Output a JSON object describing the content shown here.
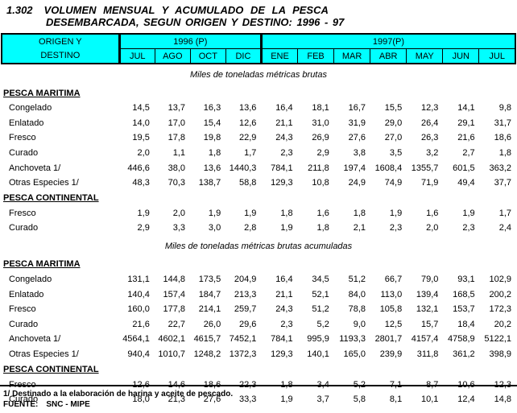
{
  "colors": {
    "header_bg": "#00FFFF",
    "border": "#000000",
    "text": "#000000"
  },
  "title": {
    "number": "1.302",
    "line1": "VOLUMEN MENSUAL Y ACUMULADO DE LA PESCA",
    "line2": "DESEMBARCADA, SEGUN ORIGEN Y DESTINO: 1996 - 97"
  },
  "header": {
    "origin_line1": "ORIGEN Y",
    "origin_line2": "DESTINO",
    "group_1996": "1996 (P)",
    "group_1997": "1997(P)",
    "months_1996": [
      "JUL",
      "AGO",
      "OCT",
      "DIC"
    ],
    "months_1997": [
      "ENE",
      "FEB",
      "MAR",
      "ABR",
      "MAY",
      "JUN",
      "JUL"
    ]
  },
  "sections": [
    {
      "caption": "Miles de toneladas métricas brutas",
      "groups": [
        {
          "heading": "PESCA MARITIMA",
          "rows": [
            {
              "label": "Congelado",
              "values": [
                "14,5",
                "13,7",
                "16,3",
                "13,6",
                "16,4",
                "18,1",
                "16,7",
                "15,5",
                "12,3",
                "14,1",
                "9,8"
              ]
            },
            {
              "label": "Enlatado",
              "values": [
                "14,0",
                "17,0",
                "15,4",
                "12,6",
                "21,1",
                "31,0",
                "31,9",
                "29,0",
                "26,4",
                "29,1",
                "31,7"
              ]
            },
            {
              "label": "Fresco",
              "values": [
                "19,5",
                "17,8",
                "19,8",
                "22,9",
                "24,3",
                "26,9",
                "27,6",
                "27,0",
                "26,3",
                "21,6",
                "18,6"
              ]
            },
            {
              "label": "Curado",
              "values": [
                "2,0",
                "1,1",
                "1,8",
                "1,7",
                "2,3",
                "2,9",
                "3,8",
                "3,5",
                "3,2",
                "2,7",
                "1,8"
              ]
            },
            {
              "label": "Anchoveta 1/",
              "values": [
                "446,6",
                "38,0",
                "13,6",
                "1440,3",
                "784,1",
                "211,8",
                "197,4",
                "1608,4",
                "1355,7",
                "601,5",
                "363,2"
              ]
            },
            {
              "label": "Otras Especies 1/",
              "values": [
                "48,3",
                "70,3",
                "138,7",
                "58,8",
                "129,3",
                "10,8",
                "24,9",
                "74,9",
                "71,9",
                "49,4",
                "37,7"
              ]
            }
          ]
        },
        {
          "heading": "PESCA CONTINENTAL",
          "rows": [
            {
              "label": "Fresco",
              "values": [
                "1,9",
                "2,0",
                "1,9",
                "1,9",
                "1,8",
                "1,6",
                "1,8",
                "1,9",
                "1,6",
                "1,9",
                "1,7"
              ]
            },
            {
              "label": "Curado",
              "values": [
                "2,9",
                "3,3",
                "3,0",
                "2,8",
                "1,9",
                "1,8",
                "2,1",
                "2,3",
                "2,0",
                "2,3",
                "2,4"
              ]
            }
          ]
        }
      ]
    },
    {
      "caption": "Miles de toneladas métricas brutas acumuladas",
      "groups": [
        {
          "heading": "PESCA MARITIMA",
          "rows": [
            {
              "label": "Congelado",
              "values": [
                "131,1",
                "144,8",
                "173,5",
                "204,9",
                "16,4",
                "34,5",
                "51,2",
                "66,7",
                "79,0",
                "93,1",
                "102,9"
              ]
            },
            {
              "label": "Enlatado",
              "values": [
                "140,4",
                "157,4",
                "184,7",
                "213,3",
                "21,1",
                "52,1",
                "84,0",
                "113,0",
                "139,4",
                "168,5",
                "200,2"
              ]
            },
            {
              "label": "Fresco",
              "values": [
                "160,0",
                "177,8",
                "214,1",
                "259,7",
                "24,3",
                "51,2",
                "78,8",
                "105,8",
                "132,1",
                "153,7",
                "172,3"
              ]
            },
            {
              "label": "Curado",
              "values": [
                "21,6",
                "22,7",
                "26,0",
                "29,6",
                "2,3",
                "5,2",
                "9,0",
                "12,5",
                "15,7",
                "18,4",
                "20,2"
              ]
            },
            {
              "label": "Anchoveta 1/",
              "values": [
                "4564,1",
                "4602,1",
                "4615,7",
                "7452,1",
                "784,1",
                "995,9",
                "1193,3",
                "2801,7",
                "4157,4",
                "4758,9",
                "5122,1"
              ]
            },
            {
              "label": "Otras Especies 1/",
              "values": [
                "940,4",
                "1010,7",
                "1248,2",
                "1372,3",
                "129,3",
                "140,1",
                "165,0",
                "239,9",
                "311,8",
                "361,2",
                "398,9"
              ]
            }
          ]
        },
        {
          "heading": "PESCA CONTINENTAL",
          "rows": [
            {
              "label": "Fresco",
              "values": [
                "12,6",
                "14,6",
                "18,6",
                "22,3",
                "1,8",
                "3,4",
                "5,2",
                "7,1",
                "8,7",
                "10,6",
                "12,3"
              ]
            },
            {
              "label": "Curado",
              "values": [
                "18,0",
                "21,3",
                "27,6",
                "33,3",
                "1,9",
                "3,7",
                "5,8",
                "8,1",
                "10,1",
                "12,4",
                "14,8"
              ]
            }
          ]
        }
      ]
    }
  ],
  "footer": {
    "footnote": "1/ Destinado a la elaboración de harina y aceite de pescado.",
    "source_label": "FUENTE:",
    "source_value": "SNC - MIPE"
  }
}
